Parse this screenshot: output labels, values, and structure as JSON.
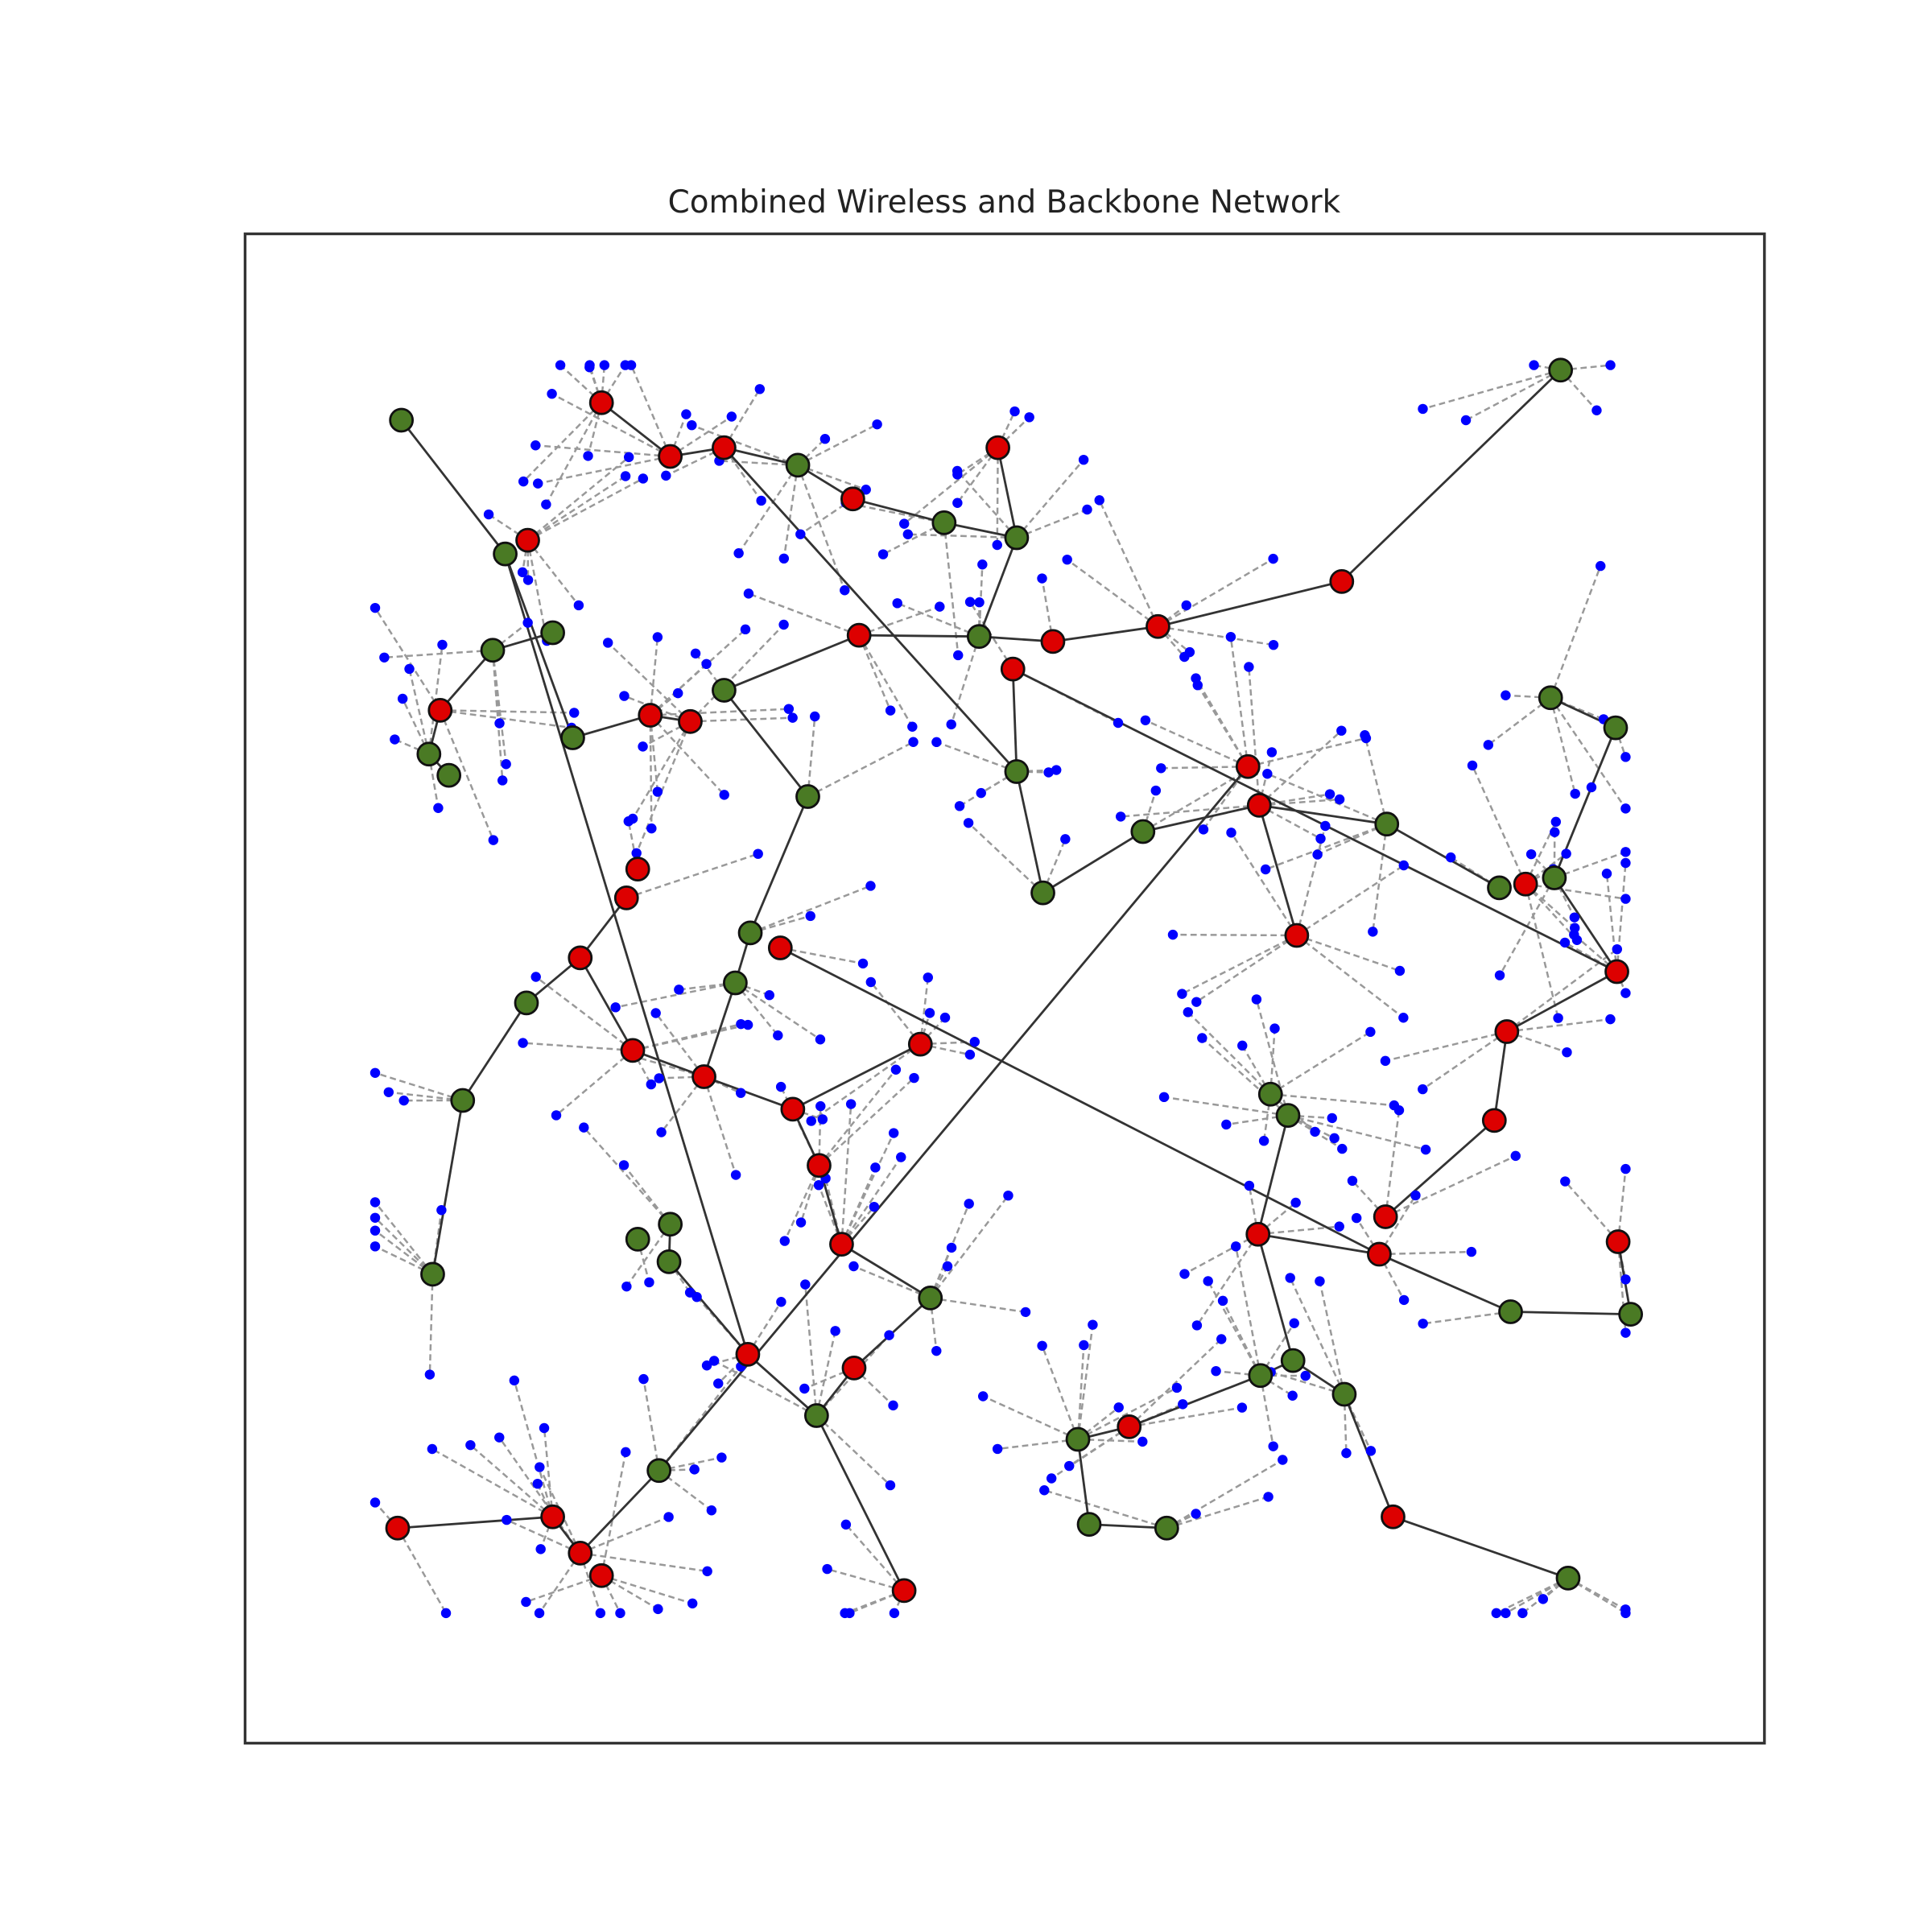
{
  "title": "Combined Wireless and Backbone Network"
}
